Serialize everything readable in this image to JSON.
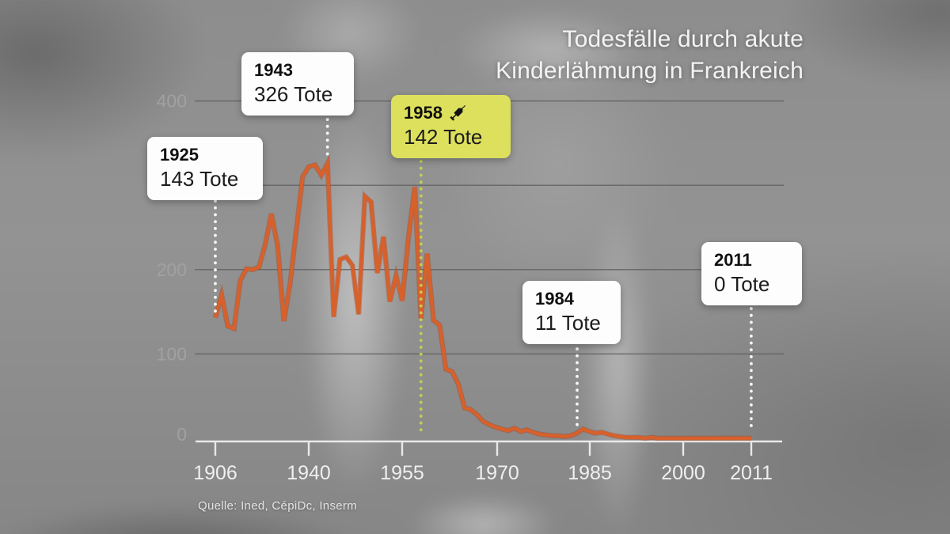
{
  "title": {
    "line1": "Todesfälle durch akute",
    "line2": "Kinderlähmung in Frankreich"
  },
  "source": "Quelle: Ined, CépiDc, Inserm",
  "colors": {
    "line": "#d7602b",
    "line_shadow": "#a8431c",
    "highlight_box": "#dde05c",
    "highlight_dots": "#c9d44b",
    "callout_bg": "#fdfdfd",
    "callout_text": "#101010",
    "axis": "#e9e9e9",
    "grid": "#5f5f5f",
    "ylabel": "#a3a3a3",
    "xlabel": "#efefef"
  },
  "callouts": [
    {
      "year": "1925",
      "value": "143 Tote",
      "highlight": false
    },
    {
      "year": "1943",
      "value": "326 Tote",
      "highlight": false
    },
    {
      "year": "1958",
      "value": "142 Tote",
      "highlight": true,
      "icon": "syringe-icon"
    },
    {
      "year": "1984",
      "value": "11 Tote",
      "highlight": false
    },
    {
      "year": "2011",
      "value": "0 Tote",
      "highlight": false
    }
  ],
  "chart_data": {
    "type": "line",
    "title": "Todesfälle durch akute Kinderlähmung in Frankreich",
    "xlabel": "",
    "ylabel": "",
    "legend": "none",
    "grid": true,
    "ylim": [
      0,
      420
    ],
    "x_ticks": [
      1906,
      1940,
      1955,
      1970,
      1985,
      2000,
      2011
    ],
    "y_ticks_labeled": [
      400,
      200,
      100,
      0
    ],
    "y_gridlines": [
      100,
      200,
      300,
      400
    ],
    "line_color": "#d7602b",
    "x": [
      1925,
      1926,
      1927,
      1928,
      1929,
      1930,
      1931,
      1932,
      1933,
      1934,
      1935,
      1936,
      1937,
      1938,
      1939,
      1940,
      1941,
      1942,
      1943,
      1944,
      1945,
      1946,
      1947,
      1948,
      1949,
      1950,
      1951,
      1952,
      1953,
      1954,
      1955,
      1956,
      1957,
      1958,
      1959,
      1960,
      1961,
      1962,
      1963,
      1964,
      1965,
      1966,
      1967,
      1968,
      1969,
      1970,
      1971,
      1972,
      1973,
      1974,
      1975,
      1976,
      1977,
      1978,
      1979,
      1980,
      1981,
      1982,
      1983,
      1984,
      1985,
      1986,
      1987,
      1988,
      1989,
      1990,
      1991,
      1992,
      1993,
      1994,
      1995,
      1996,
      1997,
      1998,
      1999,
      2000,
      2001,
      2002,
      2003,
      2004,
      2005,
      2006,
      2007,
      2008,
      2009,
      2010,
      2011
    ],
    "values": [
      143,
      170,
      133,
      130,
      187,
      201,
      200,
      203,
      230,
      266,
      228,
      139,
      184,
      247,
      310,
      322,
      324,
      312,
      326,
      144,
      212,
      215,
      205,
      147,
      287,
      280,
      196,
      239,
      162,
      193,
      163,
      239,
      298,
      142,
      219,
      140,
      134,
      82,
      79,
      64,
      36,
      34,
      28,
      20,
      16,
      13,
      11,
      9,
      12,
      8,
      10,
      7,
      5,
      4,
      3,
      3,
      2,
      3,
      6,
      11,
      8,
      6,
      7,
      5,
      3,
      2,
      1,
      1,
      1,
      0,
      1,
      0,
      0,
      0,
      0,
      0,
      0,
      0,
      0,
      0,
      0,
      0,
      0,
      0,
      0,
      0,
      0
    ],
    "annotations": [
      {
        "year": 1925,
        "deaths": 143,
        "label": "1925 — 143 Tote"
      },
      {
        "year": 1943,
        "deaths": 326,
        "label": "1943 — 326 Tote"
      },
      {
        "year": 1958,
        "deaths": 142,
        "label": "1958 (Impfung) — 142 Tote",
        "highlight": true
      },
      {
        "year": 1984,
        "deaths": 11,
        "label": "1984 — 11 Tote"
      },
      {
        "year": 2011,
        "deaths": 0,
        "label": "2011 — 0 Tote"
      }
    ]
  }
}
